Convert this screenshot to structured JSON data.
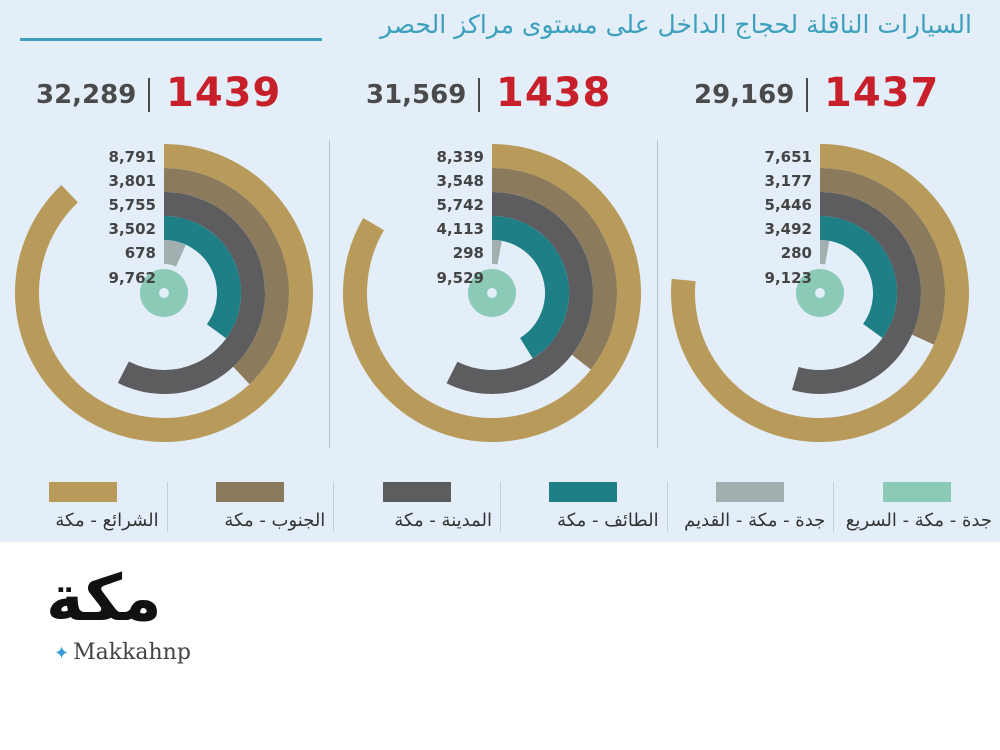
{
  "header": {
    "title": "السيارات الناقلة لحجاج الداخل على مستوى مراكز الحصر"
  },
  "colors": {
    "panel_bg": "#e3eef9",
    "title": "#3da0bc",
    "year": "#c8202a",
    "total": "#4a4a4a",
    "series": [
      "#b89a5a",
      "#8b7a5c",
      "#5d5d60",
      "#1f7f86",
      "#a3aeb0",
      "#8ccab8"
    ]
  },
  "chart_data": {
    "type": "radial_bar",
    "series_names": [
      "الشرائع - مكة",
      "الجنوب - مكة",
      "المدينة - مكة",
      "الطائف - مكة",
      "جدة - مكة - القديم",
      "جدة - مكة - السريع"
    ],
    "panels": [
      {
        "year": "1439",
        "total": "32,289",
        "values": [
          8791,
          3801,
          5755,
          3502,
          678,
          9762
        ],
        "labels": [
          "8,791",
          "3,801",
          "5,755",
          "3,502",
          "678",
          "9,762"
        ]
      },
      {
        "year": "1438",
        "total": "31,569",
        "values": [
          8339,
          3548,
          5742,
          4113,
          298,
          9529
        ],
        "labels": [
          "8,339",
          "3,548",
          "5,742",
          "4,113",
          "298",
          "9,529"
        ]
      },
      {
        "year": "1437",
        "total": "29,169",
        "values": [
          7651,
          3177,
          5446,
          3492,
          280,
          9123
        ],
        "labels": [
          "7,651",
          "3,177",
          "5,446",
          "3,492",
          "280",
          "9,123"
        ]
      }
    ]
  },
  "legend": [
    {
      "label": "الشرائع - مكة",
      "color": "#b89a5a"
    },
    {
      "label": "الجنوب - مكة",
      "color": "#8b7a5c"
    },
    {
      "label": "المدينة - مكة",
      "color": "#5d5d60"
    },
    {
      "label": "الطائف - مكة",
      "color": "#1f7f86"
    },
    {
      "label": "جدة - مكة - القديم",
      "color": "#a3aeb0"
    },
    {
      "label": "جدة - مكة - السريع",
      "color": "#8ccab8"
    }
  ],
  "logo": {
    "word": "مكة",
    "handle": "Makkahnp"
  }
}
